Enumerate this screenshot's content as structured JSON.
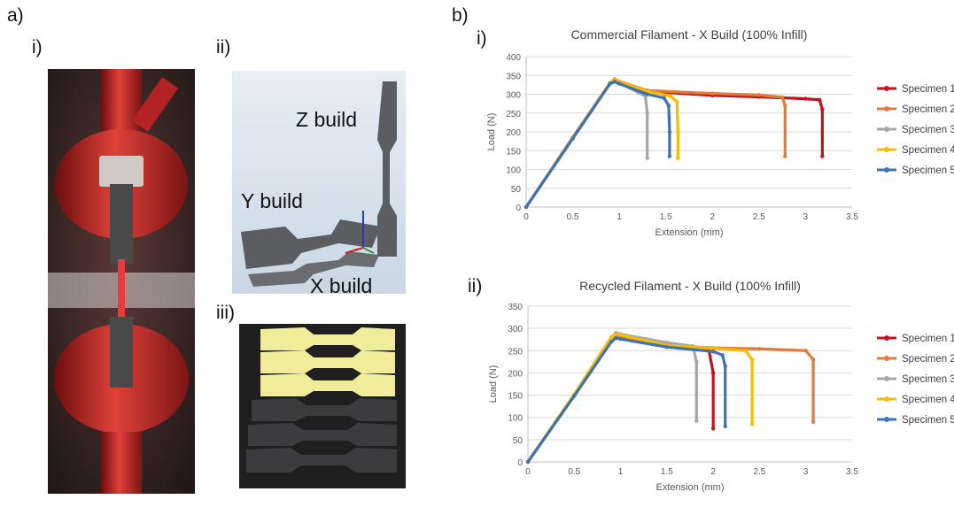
{
  "panel_labels": {
    "a": "a)",
    "a_i": "i)",
    "a_ii": "ii)",
    "a_iii": "iii)",
    "b": "b)",
    "b_i": "i)",
    "b_ii": "ii)"
  },
  "build_labels": {
    "z": "Z build",
    "y": "Y build",
    "x": "X build"
  },
  "colors": {
    "specimen_1": "#c0121f",
    "specimen_2": "#e07b39",
    "specimen_3": "#a5a5a5",
    "specimen_4": "#f5bd00",
    "specimen_5": "#3f72b4"
  },
  "chart_data": [
    {
      "type": "line",
      "title": "Commercial Filament - X Build (100% Infill)",
      "xlabel": "Extension (mm)",
      "ylabel": "Load (N)",
      "xlim": [
        0,
        3.5
      ],
      "ylim": [
        0,
        400
      ],
      "xticks": [
        "0",
        "0.5",
        "1",
        "1.5",
        "2",
        "2.5",
        "3",
        "3.5"
      ],
      "yticks": [
        "0",
        "50",
        "100",
        "150",
        "200",
        "250",
        "300",
        "350",
        "400"
      ],
      "grid": true,
      "legend": "right",
      "series": [
        {
          "name": "Specimen 1",
          "x": [
            0,
            0.5,
            0.9,
            0.95,
            1.0,
            1.3,
            2.0,
            2.5,
            3.0,
            3.15,
            3.18,
            3.18
          ],
          "y": [
            0,
            185,
            330,
            338,
            333,
            308,
            297,
            293,
            288,
            285,
            260,
            135
          ]
        },
        {
          "name": "Specimen 2",
          "x": [
            0,
            0.5,
            0.9,
            0.95,
            1.0,
            1.3,
            2.0,
            2.5,
            2.75,
            2.78,
            2.78
          ],
          "y": [
            0,
            185,
            330,
            340,
            334,
            310,
            302,
            298,
            292,
            270,
            135
          ]
        },
        {
          "name": "Specimen 3",
          "x": [
            0,
            0.5,
            0.9,
            0.95,
            1.0,
            1.2,
            1.28,
            1.3,
            1.3
          ],
          "y": [
            0,
            183,
            328,
            335,
            330,
            305,
            295,
            250,
            130
          ]
        },
        {
          "name": "Specimen 4",
          "x": [
            0,
            0.5,
            0.9,
            0.95,
            1.0,
            1.3,
            1.55,
            1.62,
            1.63,
            1.63
          ],
          "y": [
            0,
            183,
            330,
            338,
            333,
            308,
            295,
            280,
            200,
            130
          ]
        },
        {
          "name": "Specimen 5",
          "x": [
            0,
            0.5,
            0.9,
            0.95,
            1.0,
            1.3,
            1.48,
            1.53,
            1.54,
            1.54
          ],
          "y": [
            0,
            182,
            328,
            333,
            328,
            300,
            290,
            270,
            200,
            135
          ]
        }
      ]
    },
    {
      "type": "line",
      "title": "Recycled Filament - X Build (100% Infill)",
      "xlabel": "Extension (mm)",
      "ylabel": "Load (N)",
      "xlim": [
        0,
        3.5
      ],
      "ylim": [
        0,
        350
      ],
      "xticks": [
        "0",
        "0.5",
        "1",
        "1.5",
        "2",
        "2.5",
        "3",
        "3.5"
      ],
      "yticks": [
        "0",
        "50",
        "100",
        "150",
        "200",
        "250",
        "300",
        "350"
      ],
      "grid": true,
      "legend": "right",
      "series": [
        {
          "name": "Specimen 1",
          "x": [
            0,
            0.5,
            0.9,
            0.95,
            1.0,
            1.5,
            1.95,
            2.0,
            2.0
          ],
          "y": [
            0,
            150,
            275,
            282,
            280,
            265,
            255,
            200,
            75
          ]
        },
        {
          "name": "Specimen 2",
          "x": [
            0,
            0.5,
            0.9,
            0.95,
            1.0,
            1.5,
            2.0,
            2.5,
            3.0,
            3.08,
            3.08
          ],
          "y": [
            0,
            150,
            275,
            285,
            282,
            262,
            256,
            254,
            250,
            230,
            90
          ]
        },
        {
          "name": "Specimen 3",
          "x": [
            0,
            0.5,
            0.9,
            0.95,
            1.0,
            1.5,
            1.78,
            1.82,
            1.82
          ],
          "y": [
            0,
            152,
            280,
            290,
            287,
            268,
            260,
            225,
            92
          ]
        },
        {
          "name": "Specimen 4",
          "x": [
            0,
            0.5,
            0.9,
            0.95,
            1.0,
            1.5,
            2.0,
            2.35,
            2.42,
            2.42
          ],
          "y": [
            0,
            152,
            280,
            288,
            285,
            262,
            255,
            250,
            230,
            85
          ]
        },
        {
          "name": "Specimen 5",
          "x": [
            0,
            0.5,
            0.9,
            0.95,
            1.0,
            1.5,
            2.0,
            2.1,
            2.13,
            2.13
          ],
          "y": [
            0,
            148,
            270,
            278,
            276,
            258,
            248,
            240,
            215,
            80
          ]
        }
      ]
    }
  ]
}
